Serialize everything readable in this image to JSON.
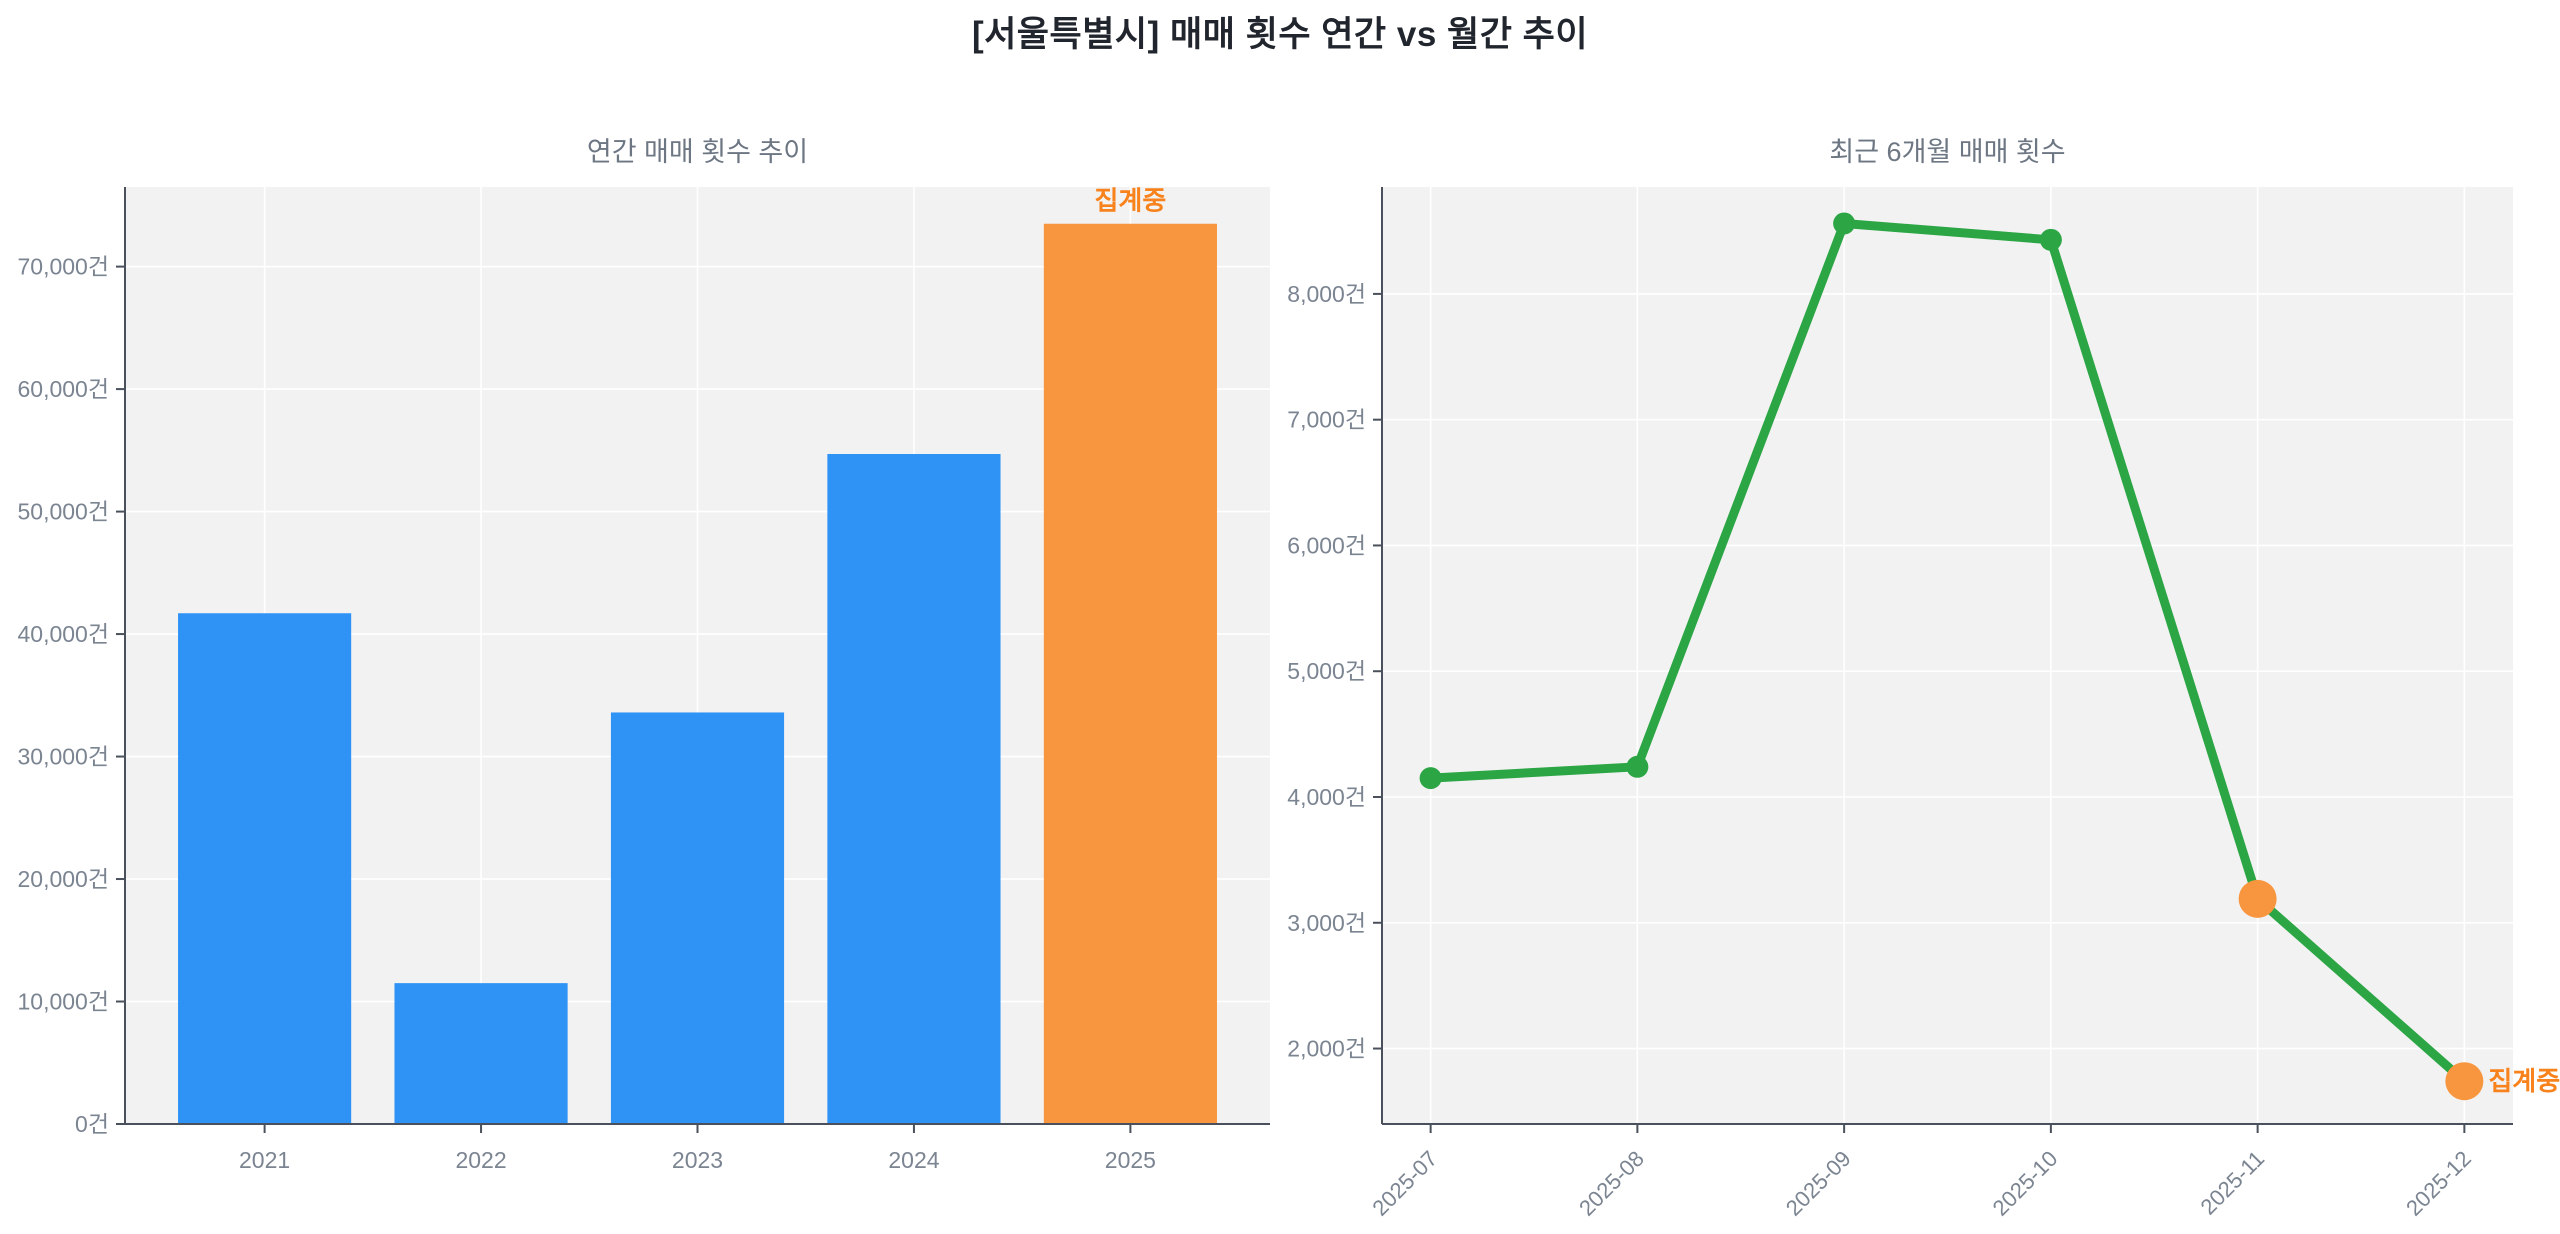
{
  "title": "[서울특별시] 매매 횟수 연간 vs 월간 추이",
  "unit_suffix": "건",
  "colors": {
    "bar_blue": "#2E93F5",
    "bar_orange": "#F8953F",
    "line_green": "#2CA644",
    "annotation_orange": "#F8821C",
    "plot_bg": "#F2F2F3",
    "grid": "#FFFFFF",
    "axis": "#4A515C",
    "tick_label": "#7B8491",
    "subtitle_color": "#6D7683",
    "title_color": "#21252D"
  },
  "chart_data": [
    {
      "type": "bar",
      "title": "연간 매매 횟수 추이",
      "categories": [
        "2021",
        "2022",
        "2023",
        "2024",
        "2025"
      ],
      "values": [
        41700,
        11500,
        33600,
        54700,
        73500
      ],
      "bar_colors": [
        "#2E93F5",
        "#2E93F5",
        "#2E93F5",
        "#2E93F5",
        "#F8953F"
      ],
      "annotation": {
        "text": "집계중",
        "target_index": 4
      },
      "ylim": [
        0,
        76500
      ],
      "yticks": [
        0,
        10000,
        20000,
        30000,
        40000,
        50000,
        60000,
        70000
      ],
      "ytick_suffix": "건",
      "grid": true,
      "legend": "none",
      "rotate_x_labels": false
    },
    {
      "type": "line",
      "title": "최근 6개월 매매 횟수",
      "categories": [
        "2025-07",
        "2025-08",
        "2025-09",
        "2025-10",
        "2025-11",
        "2025-12"
      ],
      "values": [
        4150,
        4240,
        8560,
        8430,
        3190,
        1740
      ],
      "point_colors": [
        "#2CA644",
        "#2CA644",
        "#2CA644",
        "#2CA644",
        "#F8953F",
        "#F8953F"
      ],
      "line_color": "#2CA644",
      "annotation": {
        "text": "집계중",
        "target_index": 5
      },
      "ylim": [
        1400,
        8850
      ],
      "yticks": [
        2000,
        3000,
        4000,
        5000,
        6000,
        7000,
        8000
      ],
      "ytick_suffix": "건",
      "grid": true,
      "legend": "none",
      "rotate_x_labels": true
    }
  ]
}
